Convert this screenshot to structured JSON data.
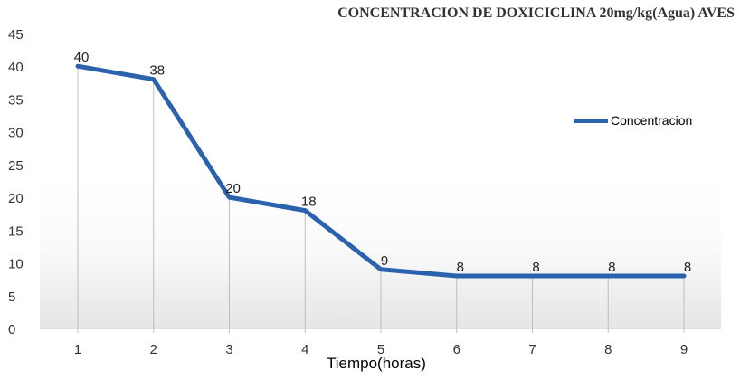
{
  "chart_data": {
    "type": "line",
    "title": "CONCENTRACION DE DOXICICLINA 20mg/kg(Agua) AVES",
    "xlabel": "Tiempo(horas)",
    "ylabel": "",
    "categories": [
      "1",
      "2",
      "3",
      "4",
      "5",
      "6",
      "7",
      "8",
      "9"
    ],
    "series": [
      {
        "name": "Concentracion",
        "values": [
          40,
          38,
          20,
          18,
          9,
          8,
          8,
          8,
          8
        ],
        "color": "#2a62ad"
      }
    ],
    "data_labels": [
      "40",
      "38",
      "20",
      "18",
      "9",
      "8",
      "8",
      "8",
      "8"
    ],
    "ylim": [
      0,
      45
    ],
    "yticks": [
      "0",
      "5",
      "10",
      "15",
      "20",
      "25",
      "30",
      "35",
      "40",
      "45"
    ],
    "grid": "vertical drop lines",
    "legend_position": "right"
  },
  "legend": {
    "label": "Concentracion"
  }
}
